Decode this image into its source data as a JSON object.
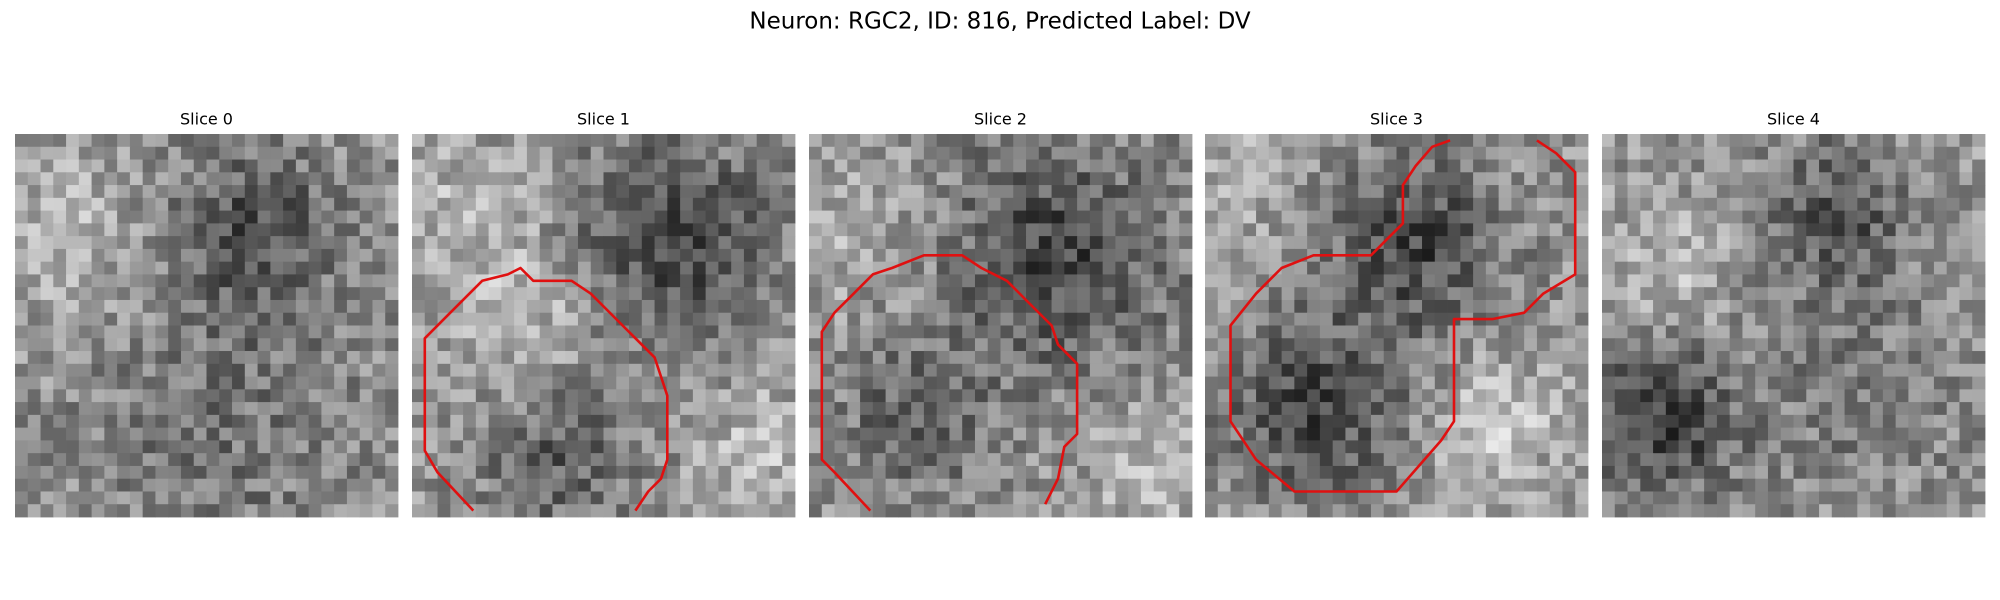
{
  "header": {
    "title": "Neuron: RGC2, ID: 816, Predicted Label: DV"
  },
  "panels": [
    {
      "title": "Slice 0"
    },
    {
      "title": "Slice 1"
    },
    {
      "title": "Slice 2"
    },
    {
      "title": "Slice 3"
    },
    {
      "title": "Slice 4"
    }
  ]
}
